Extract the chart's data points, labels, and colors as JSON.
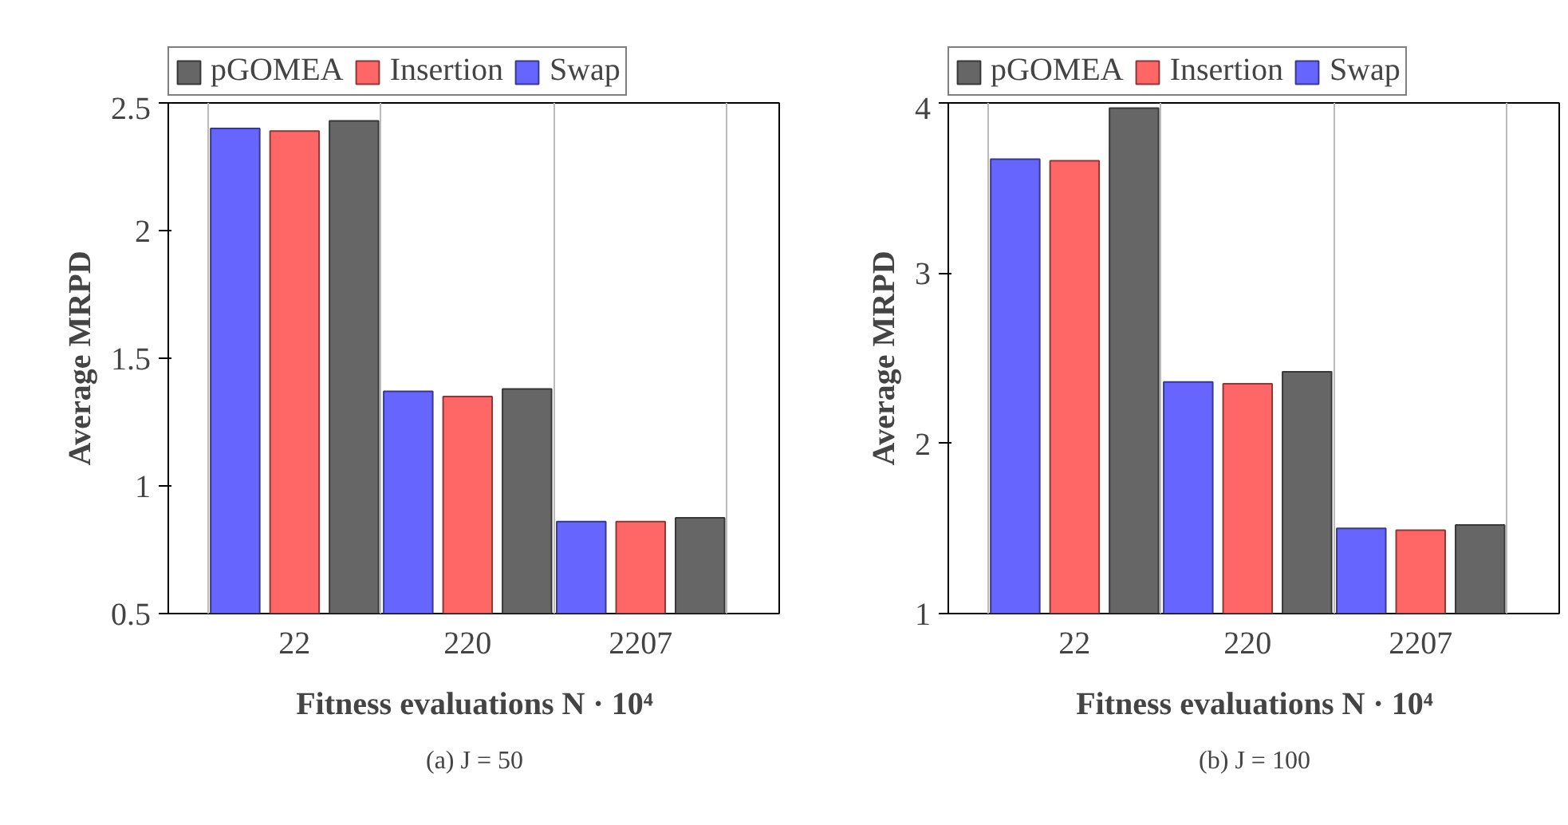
{
  "chart_data": [
    {
      "type": "bar",
      "title": "(a) J = 50",
      "xlabel": "Fitness evaluations N · 10⁴",
      "ylabel": "Average MRPD",
      "categories": [
        "22",
        "220",
        "2207"
      ],
      "series": [
        {
          "name": "Swap",
          "color": "#6666ff",
          "values": [
            2.4,
            1.37,
            0.86
          ]
        },
        {
          "name": "Insertion",
          "color": "#ff6666",
          "values": [
            2.39,
            1.35,
            0.86
          ]
        },
        {
          "name": "pGOMEA",
          "color": "#666666",
          "values": [
            2.43,
            1.38,
            0.875
          ]
        }
      ],
      "ylim": [
        0.5,
        2.5
      ],
      "yticks": [
        0.5,
        1,
        1.5,
        2,
        2.5
      ],
      "grid": "x",
      "legend": "top"
    },
    {
      "type": "bar",
      "title": "(b) J = 100",
      "xlabel": "Fitness evaluations N · 10⁴",
      "ylabel": "Average MRPD",
      "categories": [
        "22",
        "220",
        "2207"
      ],
      "series": [
        {
          "name": "Swap",
          "color": "#6666ff",
          "values": [
            3.67,
            2.36,
            1.5
          ]
        },
        {
          "name": "Insertion",
          "color": "#ff6666",
          "values": [
            3.66,
            2.35,
            1.49
          ]
        },
        {
          "name": "pGOMEA",
          "color": "#666666",
          "values": [
            3.97,
            2.42,
            1.52
          ]
        }
      ],
      "ylim": [
        1,
        4
      ],
      "yticks": [
        1,
        2,
        3,
        4
      ],
      "grid": "x",
      "legend": "top"
    }
  ]
}
